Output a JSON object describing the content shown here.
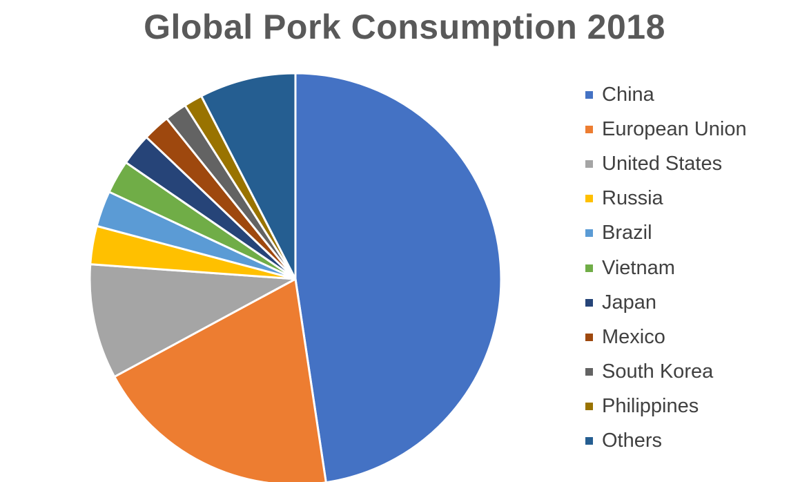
{
  "chart_data": {
    "type": "pie",
    "title": "Global Pork Consumption 2018",
    "legend_position": "right",
    "start_angle": "12 o'clock, clockwise",
    "categories": [
      "China",
      "European Union",
      "United States",
      "Russia",
      "Brazil",
      "Vietnam",
      "Japan",
      "Mexico",
      "South Korea",
      "Philippines",
      "Others"
    ],
    "values": [
      49.1,
      20.1,
      9.3,
      3.1,
      2.9,
      2.7,
      2.6,
      2.2,
      1.8,
      1.5,
      7.8
    ],
    "unit": "% of total",
    "colors": [
      "#4472C4",
      "#ED7D31",
      "#A5A5A5",
      "#FFC000",
      "#5B9BD5",
      "#70AD47",
      "#264478",
      "#9E480E",
      "#636363",
      "#997300",
      "#255E91"
    ]
  }
}
